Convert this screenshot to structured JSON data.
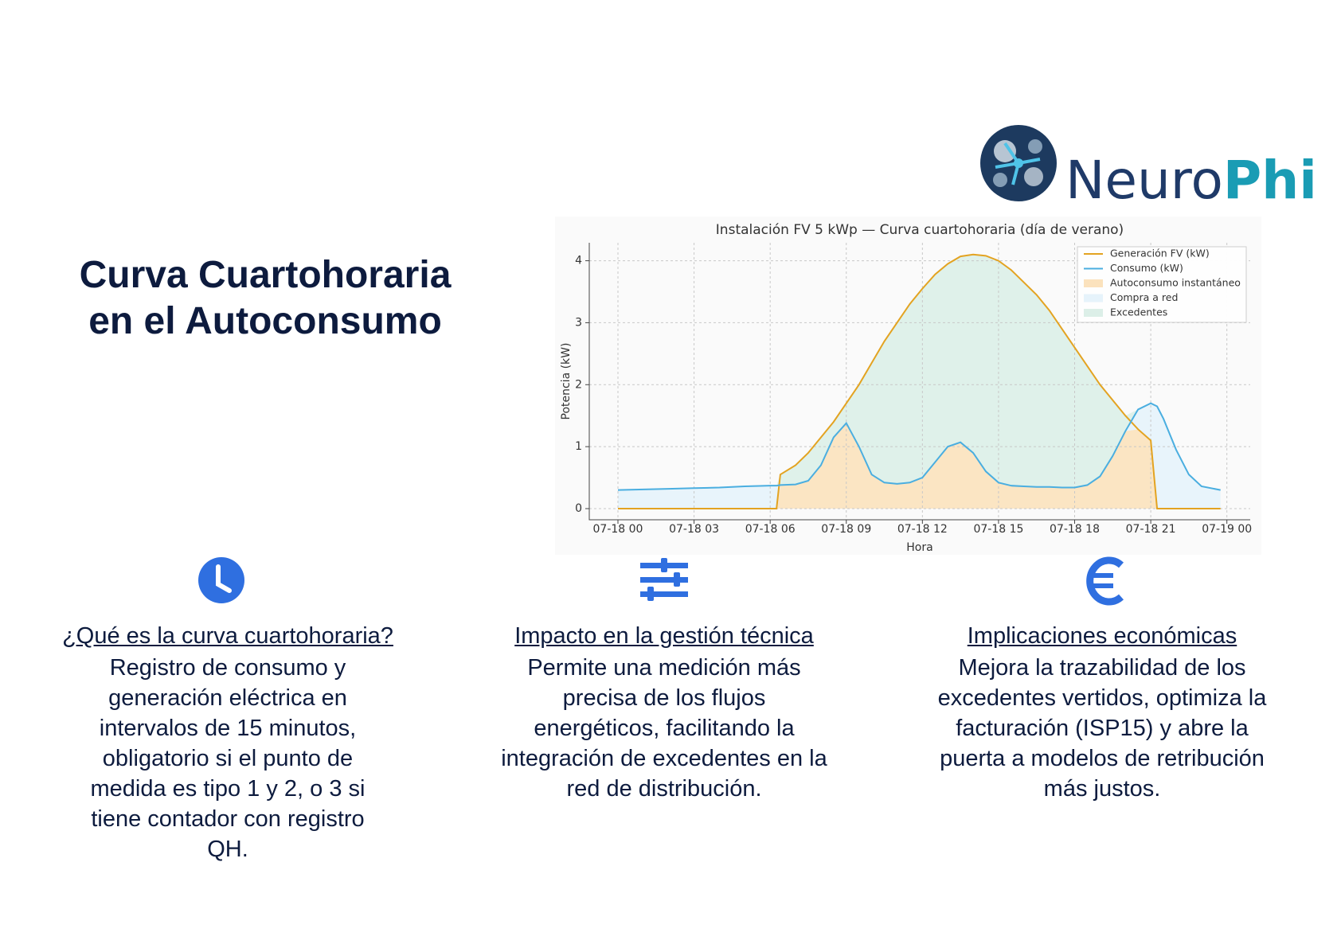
{
  "logo": {
    "text_a": "Neuro",
    "text_b": "Phi"
  },
  "title": {
    "lines": [
      "Curva Cuartohoraria",
      "en el Autoconsumo"
    ]
  },
  "chart_data": {
    "type": "line",
    "title": "Instalación FV 5 kWp — Curva cuartohoraria (día de verano)",
    "xlabel": "Hora",
    "ylabel": "Potencia (kW)",
    "x": [
      0,
      1,
      2,
      3,
      4,
      5,
      6,
      6.25,
      6.4,
      7,
      7.5,
      8,
      8.5,
      9,
      9.5,
      10,
      10.5,
      11,
      11.5,
      12,
      12.5,
      13,
      13.5,
      14,
      14.5,
      15,
      15.5,
      16,
      16.5,
      17,
      17.5,
      18,
      18.5,
      19,
      19.5,
      20,
      20.5,
      21,
      21.25,
      21.5,
      22,
      22.5,
      23,
      23.75
    ],
    "series": [
      {
        "name": "Generación FV (kW)",
        "color": "#e3a321",
        "values": [
          0,
          0,
          0,
          0,
          0,
          0,
          0,
          0,
          0.55,
          0.7,
          0.9,
          1.15,
          1.4,
          1.7,
          2.0,
          2.35,
          2.7,
          3.0,
          3.3,
          3.55,
          3.78,
          3.95,
          4.07,
          4.1,
          4.08,
          4.0,
          3.85,
          3.65,
          3.45,
          3.2,
          2.9,
          2.6,
          2.3,
          2.0,
          1.75,
          1.5,
          1.28,
          1.1,
          0,
          0,
          0,
          0,
          0,
          0
        ]
      },
      {
        "name": "Consumo (kW)",
        "color": "#4aaee0",
        "values": [
          0.3,
          0.31,
          0.32,
          0.33,
          0.34,
          0.36,
          0.37,
          0.37,
          0.38,
          0.39,
          0.45,
          0.7,
          1.15,
          1.38,
          1.0,
          0.55,
          0.42,
          0.4,
          0.42,
          0.5,
          0.75,
          1.0,
          1.07,
          0.9,
          0.6,
          0.42,
          0.37,
          0.36,
          0.35,
          0.35,
          0.34,
          0.34,
          0.38,
          0.52,
          0.85,
          1.25,
          1.6,
          1.7,
          1.65,
          1.45,
          0.95,
          0.55,
          0.36,
          0.3
        ]
      }
    ],
    "areas": [
      {
        "name": "Autoconsumo instantáneo",
        "color": "#fbe2bd"
      },
      {
        "name": "Compra a red",
        "color": "#e6f3fb"
      },
      {
        "name": "Excedentes",
        "color": "#dcefe8"
      }
    ],
    "xlim": [
      -1.13,
      24.92
    ],
    "ylim": [
      -0.18,
      4.29
    ],
    "xticks": [
      {
        "value": 0,
        "label": "07-18 00"
      },
      {
        "value": 3,
        "label": "07-18 03"
      },
      {
        "value": 6,
        "label": "07-18 06"
      },
      {
        "value": 9,
        "label": "07-18 09"
      },
      {
        "value": 12,
        "label": "07-18 12"
      },
      {
        "value": 15,
        "label": "07-18 15"
      },
      {
        "value": 18,
        "label": "07-18 18"
      },
      {
        "value": 21,
        "label": "07-18 21"
      },
      {
        "value": 24,
        "label": "07-19 00"
      }
    ],
    "yticks": [
      0,
      1,
      2,
      3,
      4
    ],
    "grid": true,
    "legend": "upper right"
  },
  "columns": [
    {
      "heading": "¿Qué es la curva cuartohoraria?",
      "lines": [
        "Registro de consumo y",
        "generación eléctrica en",
        "intervalos de 15 minutos,",
        "obligatorio si el punto de",
        "medida es tipo 1 y 2, o 3 si",
        "tiene contador con registro",
        "QH."
      ]
    },
    {
      "heading": "Impacto en la gestión técnica",
      "lines": [
        "Permite una medición más",
        "precisa de los flujos",
        "energéticos, facilitando la",
        "integración de excedentes en la",
        "red de distribución."
      ]
    },
    {
      "heading": "Implicaciones económicas",
      "lines": [
        "Mejora la trazabilidad de los",
        "excedentes vertidos, optimiza la",
        "facturación (ISP15) y abre la",
        "puerta a modelos de retribución",
        "más justos."
      ]
    }
  ]
}
